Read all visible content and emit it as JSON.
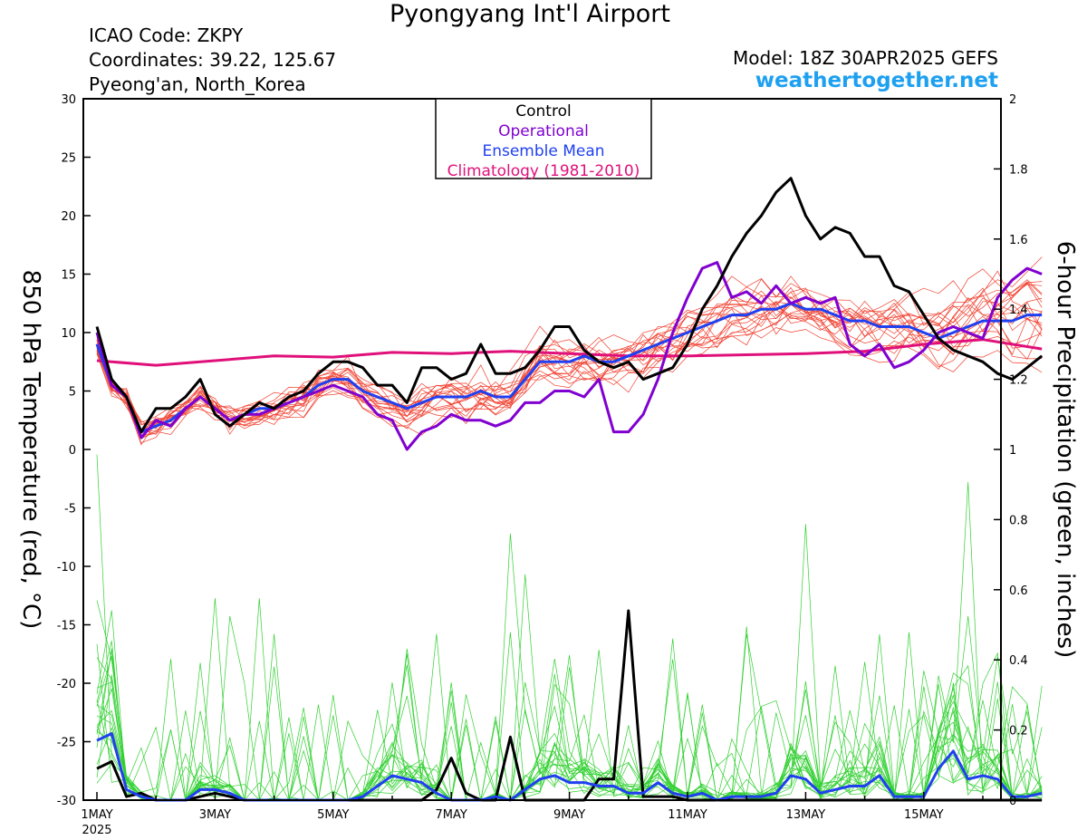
{
  "header": {
    "title": "Pyongyang Int'l Airport",
    "icao": "ICAO Code: ZKPY",
    "coords": "Coordinates: 39.22, 125.67",
    "location": "Pyeong'an, North_Korea",
    "model": "Model: 18Z 30APR2025 GEFS",
    "site": "weathertogether.net"
  },
  "chart_data": {
    "type": "line",
    "xlabel": "",
    "ylabel_left": "850 hPa Temperature (red, °C)",
    "ylabel_right": "6-hour Precipitation (green, inches)",
    "ylim_left": [
      -30,
      30
    ],
    "ylim_right": [
      0,
      2
    ],
    "left_ticks": [
      "30",
      "25",
      "20",
      "15",
      "10",
      "5",
      "0",
      "-5",
      "-10",
      "-15",
      "-20",
      "-25",
      "-30"
    ],
    "right_ticks": [
      "2",
      "1.8",
      "1.6",
      "1.4",
      "1.2",
      "1",
      "0.8",
      "0.6",
      "0.4",
      "0.2",
      "0"
    ],
    "x_tick_labels": [
      "1MAY",
      "3MAY",
      "5MAY",
      "7MAY",
      "9MAY",
      "11MAY",
      "13MAY",
      "15MAY"
    ],
    "x_tick_sublabel": "2025",
    "x_range_days": [
      0,
      16
    ],
    "legend": {
      "placement": "top-center",
      "entries": [
        {
          "label": "Control",
          "color": "#000000"
        },
        {
          "label": "Operational",
          "color": "#8000d0"
        },
        {
          "label": "Ensemble Mean",
          "color": "#2040f0"
        },
        {
          "label": "Climatology (1981-2010)",
          "color": "#e0107a"
        }
      ]
    },
    "colors": {
      "members_temp": "#f04030",
      "members_precip": "#30d030",
      "control": "#000000",
      "operational": "#8000d0",
      "mean": "#2040f0",
      "climatology": "#e0107a"
    },
    "series": [
      {
        "name": "Control",
        "axis": "left",
        "x": [
          0,
          0.25,
          0.5,
          0.75,
          1,
          1.25,
          1.5,
          1.75,
          2,
          2.25,
          2.5,
          2.75,
          3,
          3.25,
          3.5,
          3.75,
          4,
          4.25,
          4.5,
          4.75,
          5,
          5.25,
          5.5,
          5.75,
          6,
          6.25,
          6.5,
          6.75,
          7,
          7.25,
          7.5,
          7.75,
          8,
          8.25,
          8.5,
          8.75,
          9,
          9.25,
          9.5,
          9.75,
          10,
          10.25,
          10.5,
          10.75,
          11,
          11.25,
          11.5,
          11.75,
          12,
          12.25,
          12.5,
          12.75,
          13,
          13.25,
          13.5,
          13.75,
          14,
          14.25,
          14.5,
          14.75,
          15,
          15.25,
          15.5,
          15.75,
          16
        ],
        "y": [
          10.5,
          6,
          4.5,
          1.5,
          3.5,
          3.5,
          4.5,
          6,
          3,
          2,
          3,
          4,
          3.5,
          4.5,
          5,
          6.5,
          7.5,
          7.5,
          7,
          5.5,
          5.5,
          4,
          7,
          7,
          6,
          6.5,
          9,
          6.5,
          6.5,
          7,
          8.5,
          10.5,
          10.5,
          8.5,
          7.5,
          7,
          7.5,
          6,
          6.5,
          7,
          9,
          12,
          14,
          16.5,
          18.5,
          20,
          22,
          23.2,
          20,
          18,
          19,
          18.5,
          16.5,
          16.5,
          14,
          13.5,
          11.5,
          9.5,
          8.5,
          8,
          7.5,
          6.5,
          6,
          7,
          8
        ]
      },
      {
        "name": "Operational",
        "axis": "left",
        "x": [
          0,
          0.25,
          0.5,
          0.75,
          1,
          1.25,
          1.5,
          1.75,
          2,
          2.25,
          2.5,
          2.75,
          3,
          3.25,
          3.5,
          3.75,
          4,
          4.25,
          4.5,
          4.75,
          5,
          5.25,
          5.5,
          5.75,
          6,
          6.25,
          6.5,
          6.75,
          7,
          7.25,
          7.5,
          7.75,
          8,
          8.25,
          8.5,
          8.75,
          9,
          9.25,
          9.5,
          9.75,
          10,
          10.25,
          10.5,
          10.75,
          11,
          11.25,
          11.5,
          11.75,
          12,
          12.25,
          12.5,
          12.75,
          13,
          13.25,
          13.5,
          13.75,
          14,
          14.25,
          14.5,
          14.75,
          15,
          15.25,
          15.5,
          15.75,
          16
        ],
        "y": [
          10,
          5.5,
          4.5,
          1,
          2.5,
          2,
          3.5,
          4.5,
          3.5,
          2.5,
          3,
          3,
          3.5,
          4,
          4.5,
          5,
          5.5,
          5,
          4.5,
          3,
          2.5,
          0,
          1.5,
          2,
          3,
          2.5,
          2.5,
          2,
          2.5,
          4,
          4,
          5,
          5,
          4.5,
          6,
          1.5,
          1.5,
          3,
          6,
          10,
          13,
          15.5,
          16,
          13,
          13.5,
          12.5,
          14,
          12.5,
          13,
          12.5,
          13,
          9,
          8,
          9,
          7,
          7.5,
          8.5,
          10,
          10.5,
          10,
          9.5,
          13,
          14.5,
          15.5,
          15
        ]
      },
      {
        "name": "Ensemble Mean",
        "axis": "left",
        "x": [
          0,
          0.25,
          0.5,
          0.75,
          1,
          1.25,
          1.5,
          1.75,
          2,
          2.25,
          2.5,
          2.75,
          3,
          3.25,
          3.5,
          3.75,
          4,
          4.25,
          4.5,
          4.75,
          5,
          5.25,
          5.5,
          5.75,
          6,
          6.25,
          6.5,
          6.75,
          7,
          7.25,
          7.5,
          7.75,
          8,
          8.25,
          8.5,
          8.75,
          9,
          9.25,
          9.5,
          9.75,
          10,
          10.25,
          10.5,
          10.75,
          11,
          11.25,
          11.5,
          11.75,
          12,
          12.25,
          12.5,
          12.75,
          13,
          13.25,
          13.5,
          13.75,
          14,
          14.25,
          14.5,
          14.75,
          15,
          15.25,
          15.5,
          15.75,
          16
        ],
        "y": [
          9,
          5.5,
          4.5,
          1.5,
          2,
          2.5,
          3.5,
          4.5,
          3.5,
          2.5,
          3,
          3.5,
          3.5,
          4,
          4.5,
          5.5,
          6,
          6,
          5,
          4.5,
          4,
          3.5,
          4,
          4.5,
          4.5,
          4.5,
          5,
          4.5,
          4.5,
          6,
          7.5,
          7.5,
          7.5,
          8,
          7.5,
          7.5,
          8,
          8.5,
          9,
          9.5,
          10,
          10.5,
          11,
          11.5,
          11.5,
          12,
          12,
          12.5,
          12,
          12,
          11.5,
          11,
          11,
          10.5,
          10.5,
          10.5,
          10,
          9.5,
          10,
          10.5,
          11,
          11,
          11,
          11.5,
          11.5
        ]
      },
      {
        "name": "Climatology (1981-2010)",
        "axis": "left",
        "x": [
          0,
          1,
          2,
          3,
          4,
          5,
          6,
          7,
          8,
          9,
          10,
          11,
          12,
          13,
          14,
          15,
          16
        ],
        "y": [
          7.6,
          7.2,
          7.6,
          8.0,
          7.9,
          8.3,
          8.2,
          8.4,
          8.2,
          8.0,
          8.0,
          8.1,
          8.2,
          8.4,
          9.0,
          9.4,
          8.6
        ]
      },
      {
        "name": "Control",
        "axis": "right",
        "x": [
          0,
          0.25,
          0.5,
          0.75,
          1,
          1.25,
          1.5,
          1.75,
          2,
          2.25,
          2.5,
          2.75,
          3,
          3.25,
          3.5,
          3.75,
          4,
          4.25,
          4.5,
          4.75,
          5,
          5.25,
          5.5,
          5.75,
          6,
          6.25,
          6.5,
          6.75,
          7,
          7.25,
          7.5,
          7.75,
          8,
          8.25,
          8.5,
          8.75,
          9,
          9.25,
          9.5,
          9.75,
          10,
          10.25,
          10.5,
          10.75,
          11,
          11.25,
          11.5,
          11.75,
          12,
          12.25,
          12.5,
          12.75,
          13,
          13.25,
          13.5,
          13.75,
          14,
          14.25,
          14.5,
          14.75,
          15,
          15.25,
          15.5,
          15.75,
          16
        ],
        "y": [
          0.09,
          0.11,
          0.01,
          0.02,
          0,
          0,
          0,
          0.01,
          0.02,
          0.01,
          0,
          0,
          0,
          0,
          0,
          0,
          0,
          0,
          0,
          0,
          0,
          0,
          0,
          0.03,
          0.12,
          0.02,
          0,
          0,
          0.18,
          0,
          0,
          0,
          0,
          0,
          0.06,
          0.06,
          0.54,
          0.01,
          0.01,
          0.01,
          0,
          0,
          0,
          0,
          0,
          0,
          0,
          0,
          0,
          0,
          0,
          0,
          0,
          0,
          0,
          0,
          0,
          0,
          0,
          0,
          0,
          0,
          0,
          0,
          0
        ]
      },
      {
        "name": "Ensemble Mean",
        "axis": "right",
        "x": [
          0,
          0.25,
          0.5,
          0.75,
          1,
          1.25,
          1.5,
          1.75,
          2,
          2.25,
          2.5,
          2.75,
          3,
          3.25,
          3.5,
          3.75,
          4,
          4.25,
          4.5,
          4.75,
          5,
          5.25,
          5.5,
          5.75,
          6,
          6.25,
          6.5,
          6.75,
          7,
          7.25,
          7.5,
          7.75,
          8,
          8.25,
          8.5,
          8.75,
          9,
          9.25,
          9.5,
          9.75,
          10,
          10.25,
          10.5,
          10.75,
          11,
          11.25,
          11.5,
          11.75,
          12,
          12.25,
          12.5,
          12.75,
          13,
          13.25,
          13.5,
          13.75,
          14,
          14.25,
          14.5,
          14.75,
          15,
          15.25,
          15.5,
          15.75,
          16
        ],
        "y": [
          0.17,
          0.19,
          0.03,
          0.01,
          0,
          0,
          0,
          0.03,
          0.03,
          0.02,
          0,
          0,
          0,
          0,
          0,
          0,
          0,
          0,
          0.01,
          0.04,
          0.07,
          0.06,
          0.05,
          0.02,
          0,
          0,
          0,
          0.01,
          0,
          0.03,
          0.06,
          0.07,
          0.05,
          0.05,
          0.04,
          0.04,
          0.02,
          0.02,
          0.05,
          0.02,
          0.01,
          0.02,
          0,
          0.01,
          0.01,
          0.01,
          0.02,
          0.07,
          0.06,
          0.02,
          0.03,
          0.04,
          0.04,
          0.07,
          0.01,
          0.01,
          0.01,
          0.09,
          0.14,
          0.06,
          0.07,
          0.06,
          0.01,
          0.01,
          0.02
        ]
      }
    ]
  }
}
